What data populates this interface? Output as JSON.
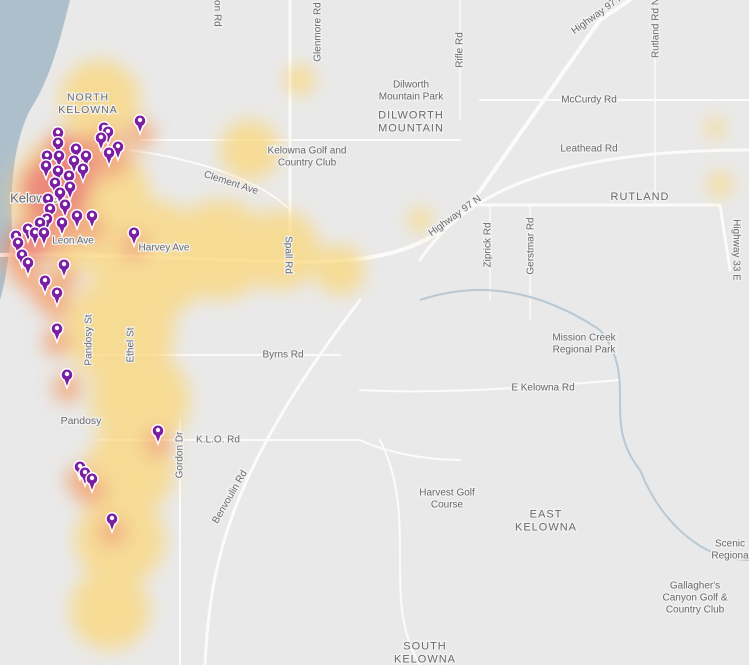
{
  "map": {
    "labels": [
      {
        "lines": [
          "NORTH",
          "KELOWNA"
        ]
      },
      {
        "lines": [
          "Kelowna"
        ]
      },
      {
        "lines": [
          "Leon Ave"
        ]
      },
      {
        "lines": [
          "Harvey Ave"
        ]
      },
      {
        "lines": [
          "Clement Ave"
        ]
      },
      {
        "lines": [
          "Glenmore Rd"
        ]
      },
      {
        "lines": [
          "Dilworth",
          "Mountain Park"
        ]
      },
      {
        "lines": [
          "DILWORTH",
          "MOUNTAIN"
        ]
      },
      {
        "lines": [
          "Rifle Rd"
        ]
      },
      {
        "lines": [
          "Highway 97 N"
        ]
      },
      {
        "lines": [
          "Highway 97 N"
        ]
      },
      {
        "lines": [
          "Rutland Rd N"
        ]
      },
      {
        "lines": [
          "McCurdy Rd"
        ]
      },
      {
        "lines": [
          "Leathead Rd"
        ]
      },
      {
        "lines": [
          "RUTLAND"
        ]
      },
      {
        "lines": [
          "Kelowna Golf and",
          "Country Club"
        ]
      },
      {
        "lines": [
          "Spall Rd"
        ]
      },
      {
        "lines": [
          "Ziprick Rd"
        ]
      },
      {
        "lines": [
          "Gerstmar Rd"
        ]
      },
      {
        "lines": [
          "Highway 33 E"
        ]
      },
      {
        "lines": [
          "Mission Creek",
          "Regional Park"
        ]
      },
      {
        "lines": [
          "Byrns Rd"
        ]
      },
      {
        "lines": [
          "E Kelowna Rd"
        ]
      },
      {
        "lines": [
          "Pandosy St"
        ]
      },
      {
        "lines": [
          "Ethel St"
        ]
      },
      {
        "lines": [
          "Pandosy"
        ]
      },
      {
        "lines": [
          "K.L.O. Rd"
        ]
      },
      {
        "lines": [
          "Gordon Dr"
        ]
      },
      {
        "lines": [
          "Benvoulin Rd"
        ]
      },
      {
        "lines": [
          "Harvest Golf",
          "Course"
        ]
      },
      {
        "lines": [
          "EAST",
          "KELOWNA"
        ]
      },
      {
        "lines": [
          "Scenic",
          "Regiona"
        ]
      },
      {
        "lines": [
          "Gallagher's",
          "Canyon Golf &",
          "Country Club"
        ]
      },
      {
        "lines": [
          "SOUTH",
          "KELOWNA"
        ]
      },
      {
        "lines": [
          "ton Rd"
        ]
      }
    ]
  }
}
